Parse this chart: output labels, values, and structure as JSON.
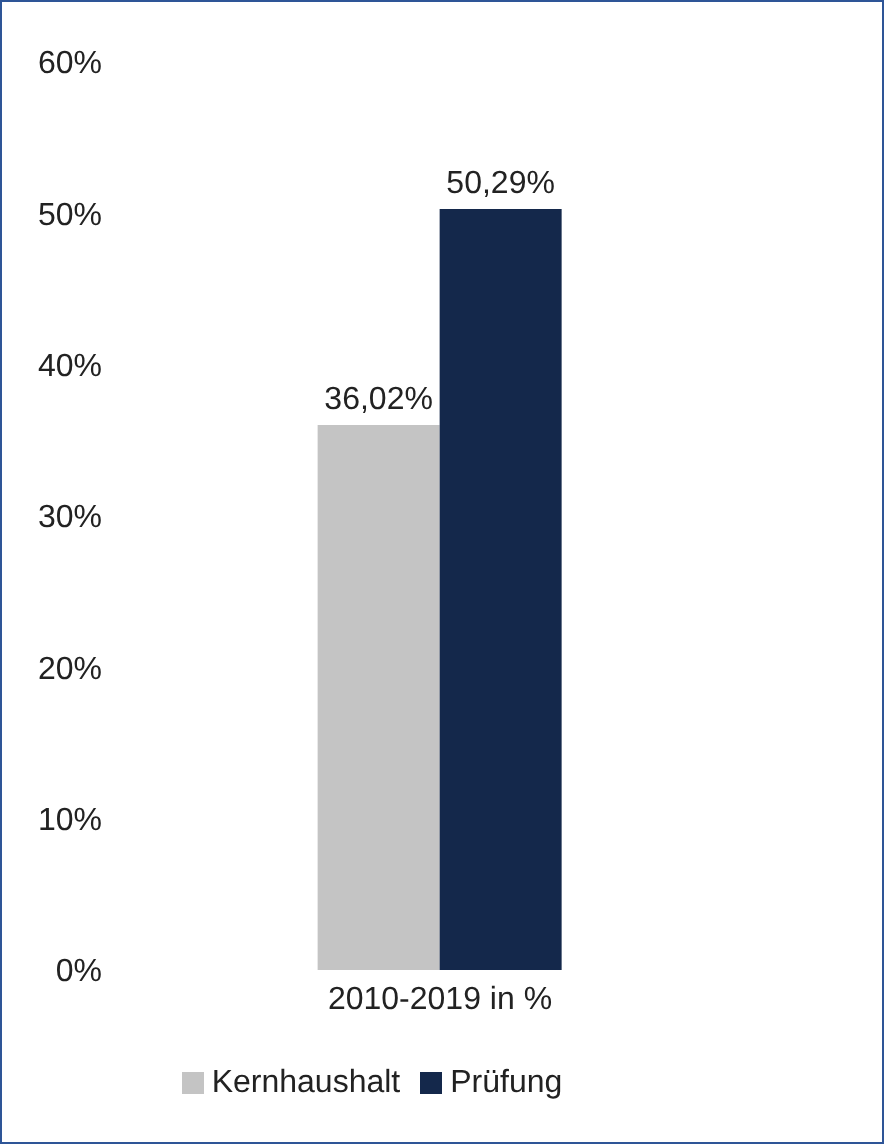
{
  "chart_data": {
    "type": "bar",
    "categories": [
      "2010-2019 in %"
    ],
    "series": [
      {
        "name": "Kernhaushalt",
        "color": "#c4c4c4",
        "values": [
          36.02
        ],
        "value_labels": [
          "36,02%"
        ]
      },
      {
        "name": "Prüfung",
        "color": "#14284b",
        "values": [
          50.29
        ],
        "value_labels": [
          "50,29%"
        ]
      }
    ],
    "ylim": [
      0,
      60
    ],
    "yticks": [
      {
        "value": 0,
        "label": "0%"
      },
      {
        "value": 10,
        "label": "10%"
      },
      {
        "value": 20,
        "label": "20%"
      },
      {
        "value": 30,
        "label": "30%"
      },
      {
        "value": 40,
        "label": "40%"
      },
      {
        "value": 50,
        "label": "50%"
      },
      {
        "value": 60,
        "label": "60%"
      }
    ],
    "grid": false,
    "legend": "bottom"
  }
}
